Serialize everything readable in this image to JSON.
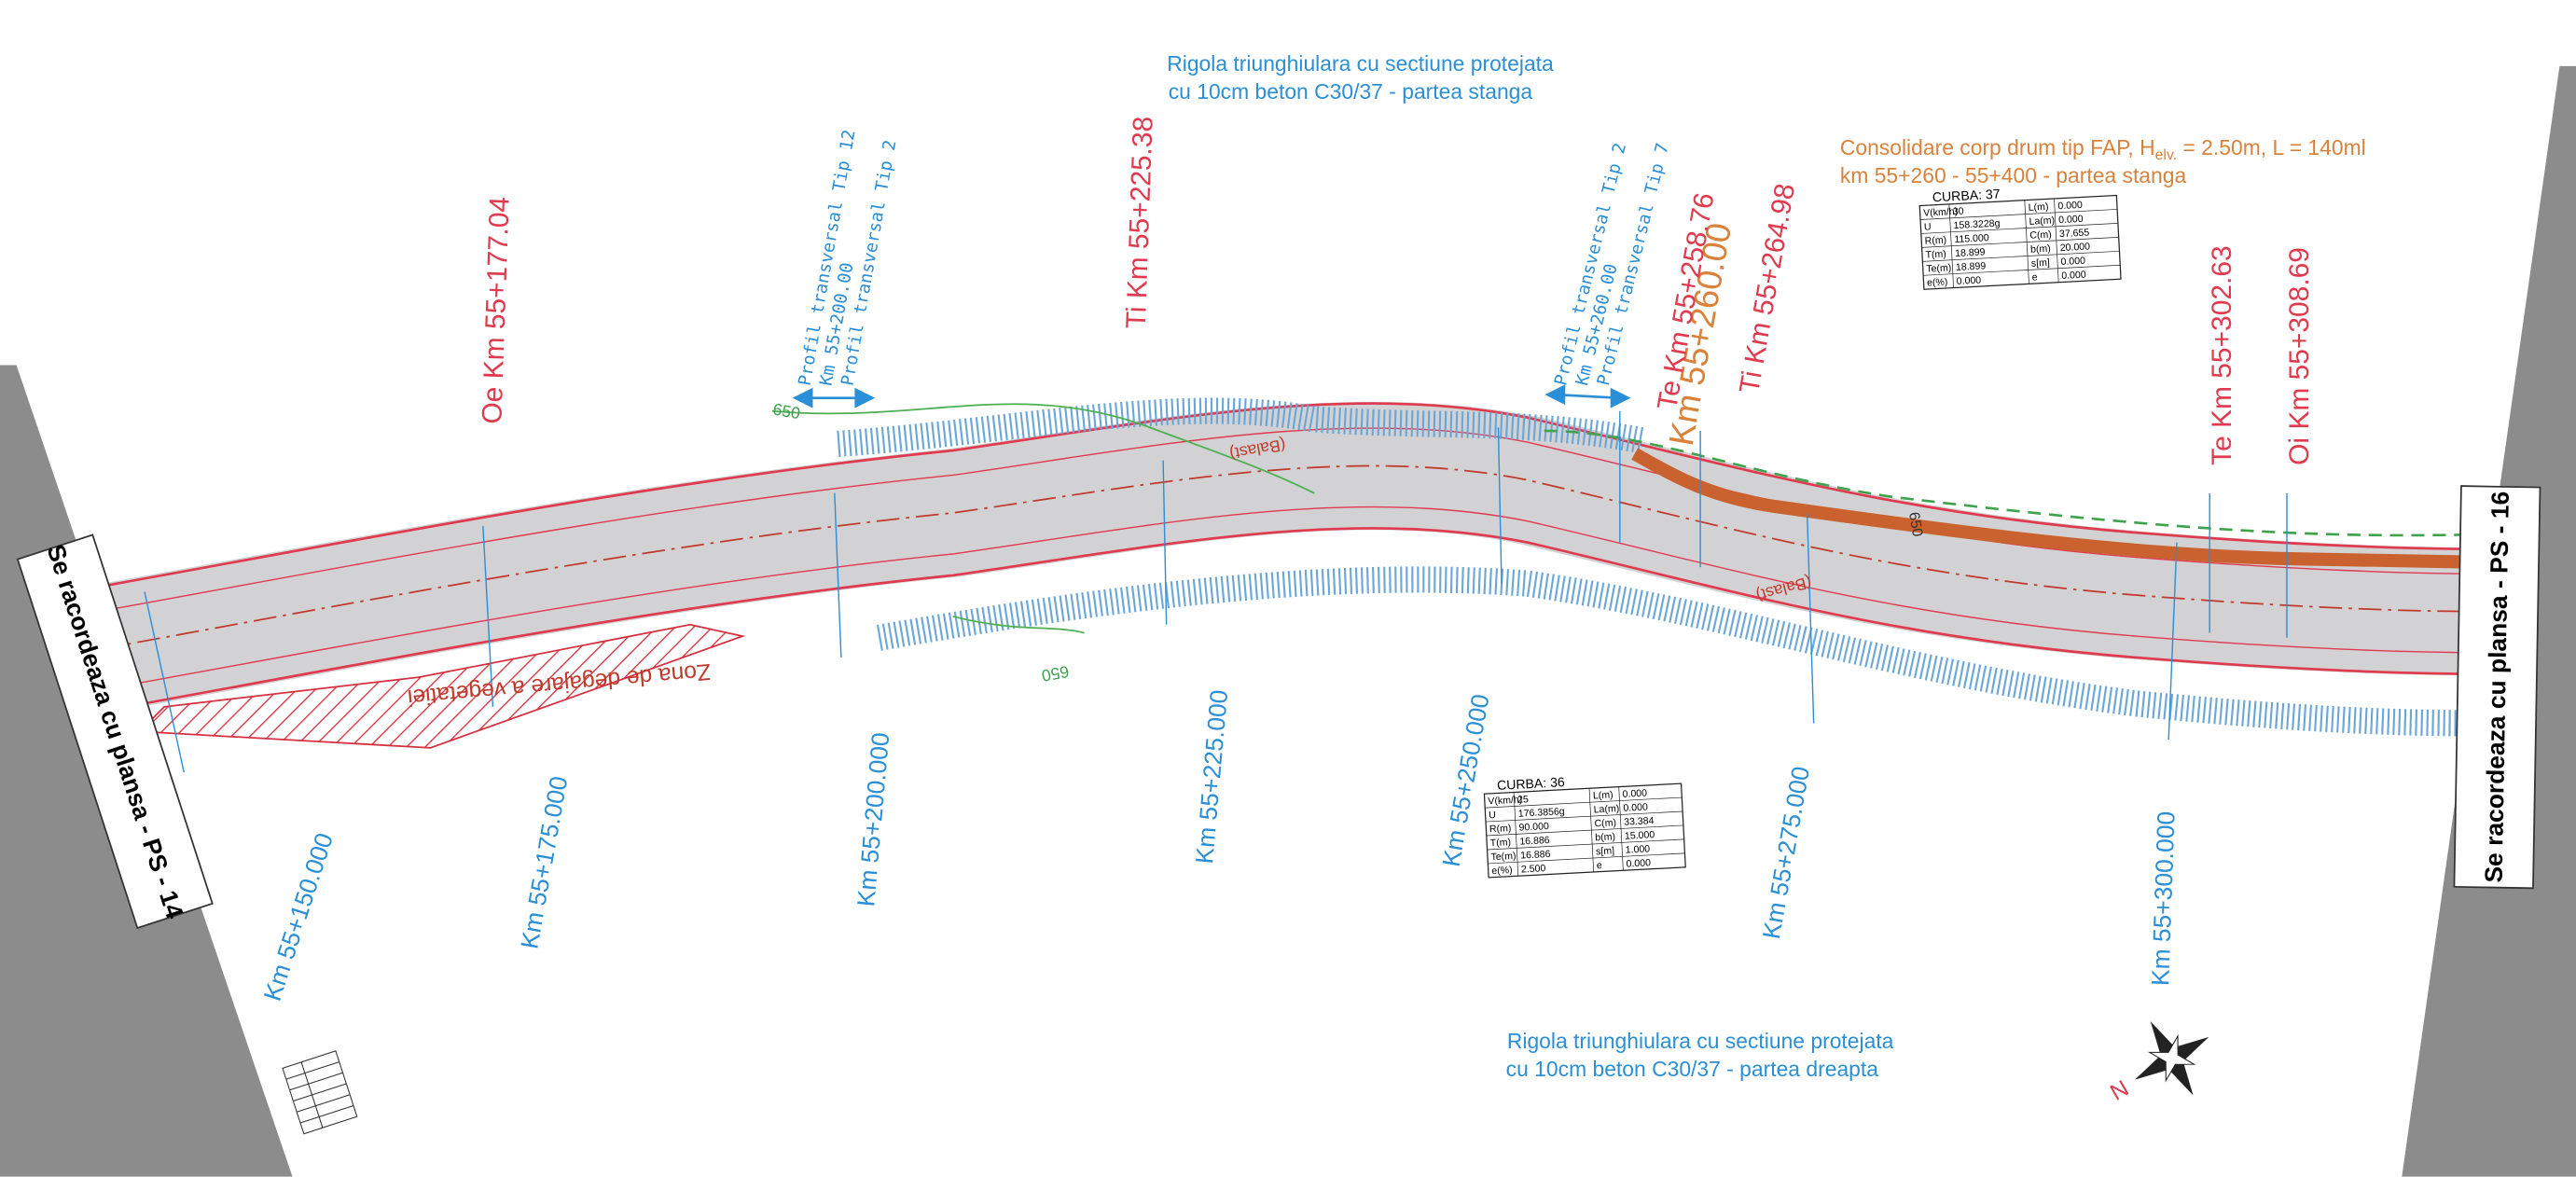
{
  "notes": {
    "left_ditch": [
      "Rigola triunghiulara cu sectiune protejata",
      "cu 10cm beton C30/37 - partea stanga"
    ],
    "right_ditch": [
      "Rigola triunghiulara cu sectiune protejata",
      "cu 10cm beton C30/37 - partea dreapta"
    ],
    "consolidation": {
      "before": "Consolidare corp drum tip FAP, H",
      "subscript": "elv.",
      "after": " = 2.50m, L = 140ml",
      "line2": "km 55+260 - 55+400 - partea stanga"
    }
  },
  "sheet_links": {
    "previous": "Se racordeaza cu plansa - PS - 14",
    "next": "Se racordeaza cu plansa - PS - 16"
  },
  "stations": [
    "Km 55+150.000",
    "Km 55+175.000",
    "Km 55+200.000",
    "Km 55+225.000",
    "Km 55+250.000",
    "Km 55+275.000",
    "Km 55+300.000"
  ],
  "curve_points": [
    "Oe Km 55+177.04",
    "Ti Km 55+225.38",
    "Te Km 55+258.76",
    "Ti Km 55+264.98",
    "Te Km 55+302.63",
    "Oi Km 55+308.69"
  ],
  "special_station": "Km 55+260.00",
  "profiles": [
    [
      "Profil transversal Tip 12",
      "Km 55+200.00",
      "Profil transversal Tip 2"
    ],
    [
      "Profil transversal Tip 2",
      "Km 55+260.00",
      "Profil transversal Tip 7"
    ]
  ],
  "vegetation_zone": "Zona de degajare a vegetatiei",
  "material_labels": [
    "(Balast)",
    "(Balast)"
  ],
  "contours": [
    "650",
    "650",
    "650"
  ],
  "curves": [
    {
      "title": "CURBA: 37",
      "left": [
        [
          "V(km/h)",
          "30"
        ],
        [
          "U",
          "158.3228g"
        ],
        [
          "R(m)",
          "115.000"
        ],
        [
          "T(m)",
          "18.899"
        ],
        [
          "Te(m)",
          "18.899"
        ],
        [
          "e(%)",
          "0.000"
        ]
      ],
      "right": [
        [
          "L(m)",
          "0.000"
        ],
        [
          "La(m)",
          "0.000"
        ],
        [
          "C(m)",
          "37.655"
        ],
        [
          "b(m)",
          "20.000"
        ],
        [
          "s[m]",
          "0.000"
        ],
        [
          "e",
          "0.000"
        ]
      ]
    },
    {
      "title": "CURBA: 36",
      "left": [
        [
          "V(km/h)",
          "25"
        ],
        [
          "U",
          "176.3856g"
        ],
        [
          "R(m)",
          "90.000"
        ],
        [
          "T(m)",
          "16.886"
        ],
        [
          "Te(m)",
          "16.886"
        ],
        [
          "e(%)",
          "2.500"
        ]
      ],
      "right": [
        [
          "L(m)",
          "0.000"
        ],
        [
          "La(m)",
          "0.000"
        ],
        [
          "C(m)",
          "33.384"
        ],
        [
          "b(m)",
          "15.000"
        ],
        [
          "s[m]",
          "1.000"
        ],
        [
          "e",
          "0.000"
        ]
      ]
    }
  ],
  "north": "N"
}
